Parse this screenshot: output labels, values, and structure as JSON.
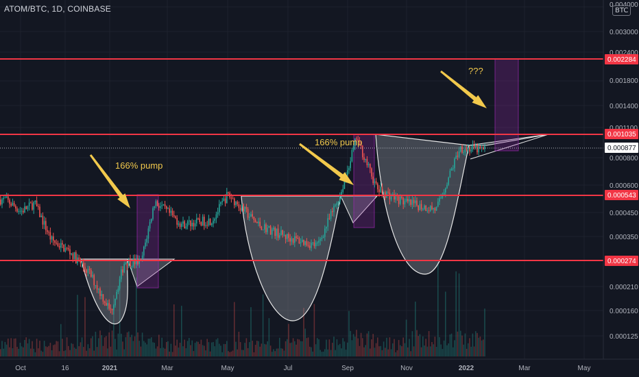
{
  "header": {
    "symbol_line": "ATOM/BTC, 1D, COINBASE"
  },
  "currency_badge": "BTC",
  "price_axis": {
    "ticks": [
      "0.004000",
      "0.003000",
      "0.002400",
      "0.001800",
      "0.001400",
      "0.001100",
      "0.000800",
      "0.000600",
      "0.000450",
      "0.000350",
      "0.000210",
      "0.000160",
      "0.000125"
    ]
  },
  "time_axis": {
    "labels": [
      "Oct",
      "16",
      "2021",
      "Mar",
      "May",
      "Jul",
      "Sep",
      "Nov",
      "2022",
      "Mar",
      "May"
    ]
  },
  "levels": [
    {
      "label": "0.002284",
      "value": 0.002284
    },
    {
      "label": "0.001035",
      "value": 0.001035
    },
    {
      "label": "0.000543",
      "value": 0.000543
    },
    {
      "label": "0.000274",
      "value": 0.000274
    }
  ],
  "last_price": {
    "label": "0.000877",
    "value": 0.000877
  },
  "annotations": [
    {
      "text": "166%  pump"
    },
    {
      "text": "166% pump"
    },
    {
      "text": "???"
    }
  ],
  "colors": {
    "up": "#26a69a",
    "down": "#ef5350",
    "level_line": "#f23645",
    "arrow": "#f2c94c",
    "box": "#9c27b0",
    "cup_fill": "#9aa0aa",
    "background": "#131722"
  },
  "chart_data": {
    "type": "candlestick",
    "title": "ATOM/BTC, 1D, COINBASE",
    "y_scale": "log",
    "ylim": [
      0.000105,
      0.0042
    ],
    "x_range": [
      "2020-09-15",
      "2022-05-20"
    ],
    "horizontal_levels": [
      0.002284,
      0.001035,
      0.000543,
      0.000274
    ],
    "last_price": 0.000877,
    "approx_close_path": [
      [
        "2020-09-15",
        0.00052
      ],
      [
        "2020-10-01",
        0.00046
      ],
      [
        "2020-10-15",
        0.0005
      ],
      [
        "2020-11-01",
        0.00034
      ],
      [
        "2020-11-20",
        0.0003
      ],
      [
        "2020-12-10",
        0.00024
      ],
      [
        "2021-01-01",
        0.00016
      ],
      [
        "2021-01-15",
        0.00027
      ],
      [
        "2021-02-01",
        0.00027
      ],
      [
        "2021-02-15",
        0.00051
      ],
      [
        "2021-03-15",
        0.0004
      ],
      [
        "2021-04-15",
        0.00042
      ],
      [
        "2021-05-01",
        0.00055
      ],
      [
        "2021-06-01",
        0.0004
      ],
      [
        "2021-07-01",
        0.00035
      ],
      [
        "2021-08-01",
        0.00032
      ],
      [
        "2021-08-25",
        0.00056
      ],
      [
        "2021-09-10",
        0.001
      ],
      [
        "2021-10-01",
        0.00058
      ],
      [
        "2021-11-01",
        0.0005
      ],
      [
        "2021-12-01",
        0.00047
      ],
      [
        "2021-12-25",
        0.0009
      ],
      [
        "2022-01-15",
        0.00088
      ]
    ]
  }
}
